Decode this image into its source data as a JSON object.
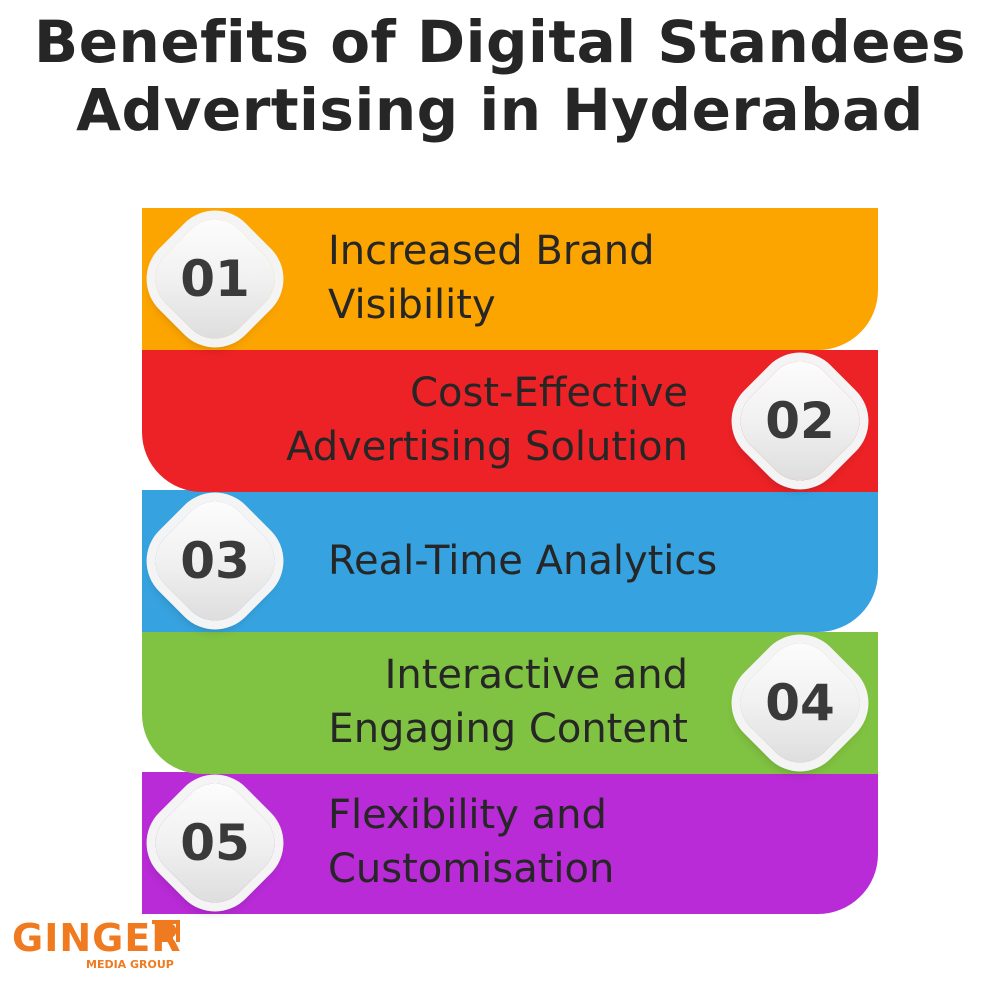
{
  "title": {
    "line1": "Benefits of Digital Standees",
    "line2": "Advertising in Hyderabad"
  },
  "items": [
    {
      "number": "01",
      "line1": "Increased Brand",
      "line2": "Visibility",
      "color": "#fca501"
    },
    {
      "number": "02",
      "line1": "Cost-Effective",
      "line2": "Advertising Solution",
      "color": "#ec2226"
    },
    {
      "number": "03",
      "line1": "Real-Time Analytics",
      "line2": "",
      "color": "#36a3e0"
    },
    {
      "number": "04",
      "line1": "Interactive and",
      "line2": "Engaging Content",
      "color": "#80c241"
    },
    {
      "number": "05",
      "line1": "Flexibility and",
      "line2": "Customisation",
      "color": "#b82bd6"
    }
  ],
  "logo": {
    "name": "GINGER",
    "tagline": "MEDIA GROUP",
    "color": "#f07a1f"
  }
}
